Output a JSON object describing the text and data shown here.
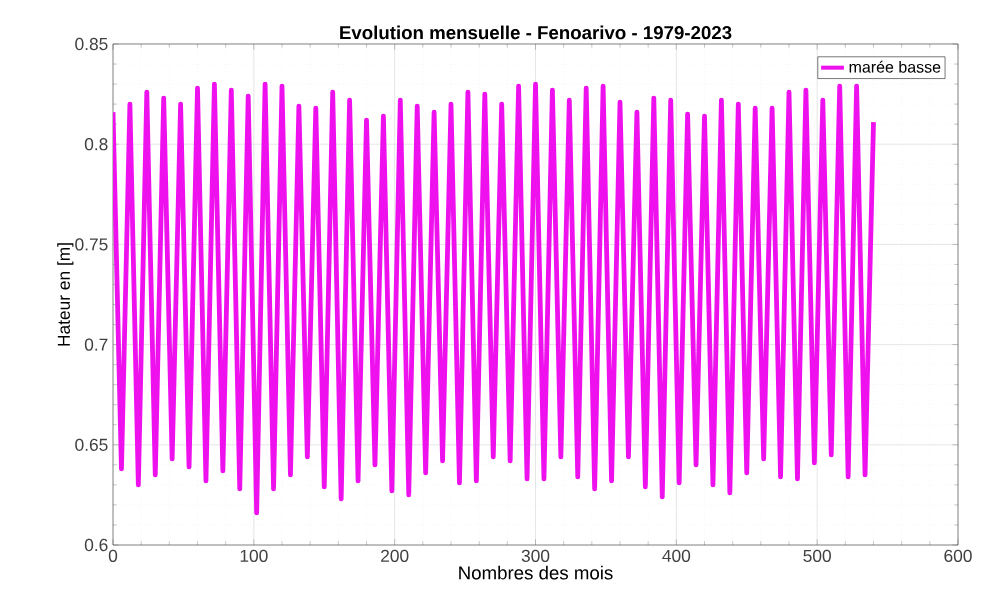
{
  "chart_data": {
    "type": "line",
    "title": "Evolution mensuelle - Fenoarivo - 1979-2023",
    "xlabel": "Nombres des mois",
    "ylabel": "Hateur en [m]",
    "series": [
      {
        "name": "marée basse",
        "color": "#ee11ee",
        "x": [
          0,
          6,
          12,
          18,
          24,
          30,
          36,
          42,
          48,
          54,
          60,
          66,
          72,
          78,
          84,
          90,
          96,
          102,
          108,
          114,
          120,
          126,
          132,
          138,
          144,
          150,
          156,
          162,
          168,
          174,
          180,
          186,
          192,
          198,
          204,
          210,
          216,
          222,
          228,
          234,
          240,
          246,
          252,
          258,
          264,
          270,
          276,
          282,
          288,
          294,
          300,
          306,
          312,
          318,
          324,
          330,
          336,
          342,
          348,
          354,
          360,
          366,
          372,
          378,
          384,
          390,
          396,
          402,
          408,
          414,
          420,
          426,
          432,
          438,
          444,
          450,
          456,
          462,
          468,
          474,
          480,
          486,
          492,
          498,
          504,
          510,
          516,
          522,
          528,
          534,
          540
        ],
        "values": [
          0.816,
          0.638,
          0.82,
          0.63,
          0.826,
          0.635,
          0.823,
          0.643,
          0.82,
          0.639,
          0.828,
          0.632,
          0.83,
          0.637,
          0.827,
          0.628,
          0.824,
          0.616,
          0.83,
          0.628,
          0.829,
          0.635,
          0.819,
          0.644,
          0.818,
          0.629,
          0.826,
          0.623,
          0.822,
          0.632,
          0.812,
          0.64,
          0.814,
          0.627,
          0.822,
          0.625,
          0.819,
          0.636,
          0.816,
          0.642,
          0.82,
          0.631,
          0.826,
          0.632,
          0.825,
          0.644,
          0.82,
          0.642,
          0.829,
          0.633,
          0.83,
          0.633,
          0.827,
          0.644,
          0.822,
          0.634,
          0.828,
          0.628,
          0.829,
          0.632,
          0.821,
          0.644,
          0.816,
          0.629,
          0.823,
          0.624,
          0.822,
          0.631,
          0.815,
          0.64,
          0.814,
          0.63,
          0.822,
          0.626,
          0.82,
          0.636,
          0.818,
          0.643,
          0.818,
          0.634,
          0.826,
          0.633,
          0.827,
          0.641,
          0.822,
          0.645,
          0.829,
          0.634,
          0.829,
          0.635,
          0.811
        ]
      }
    ],
    "xlim": [
      0,
      600
    ],
    "xticks": [
      0,
      100,
      200,
      300,
      400,
      500,
      600
    ],
    "ylim": [
      0.6,
      0.85
    ],
    "yticks": [
      0.6,
      0.65,
      0.7,
      0.75,
      0.8,
      0.85
    ],
    "grid": true,
    "legend": "top right",
    "line_style": "solid"
  }
}
